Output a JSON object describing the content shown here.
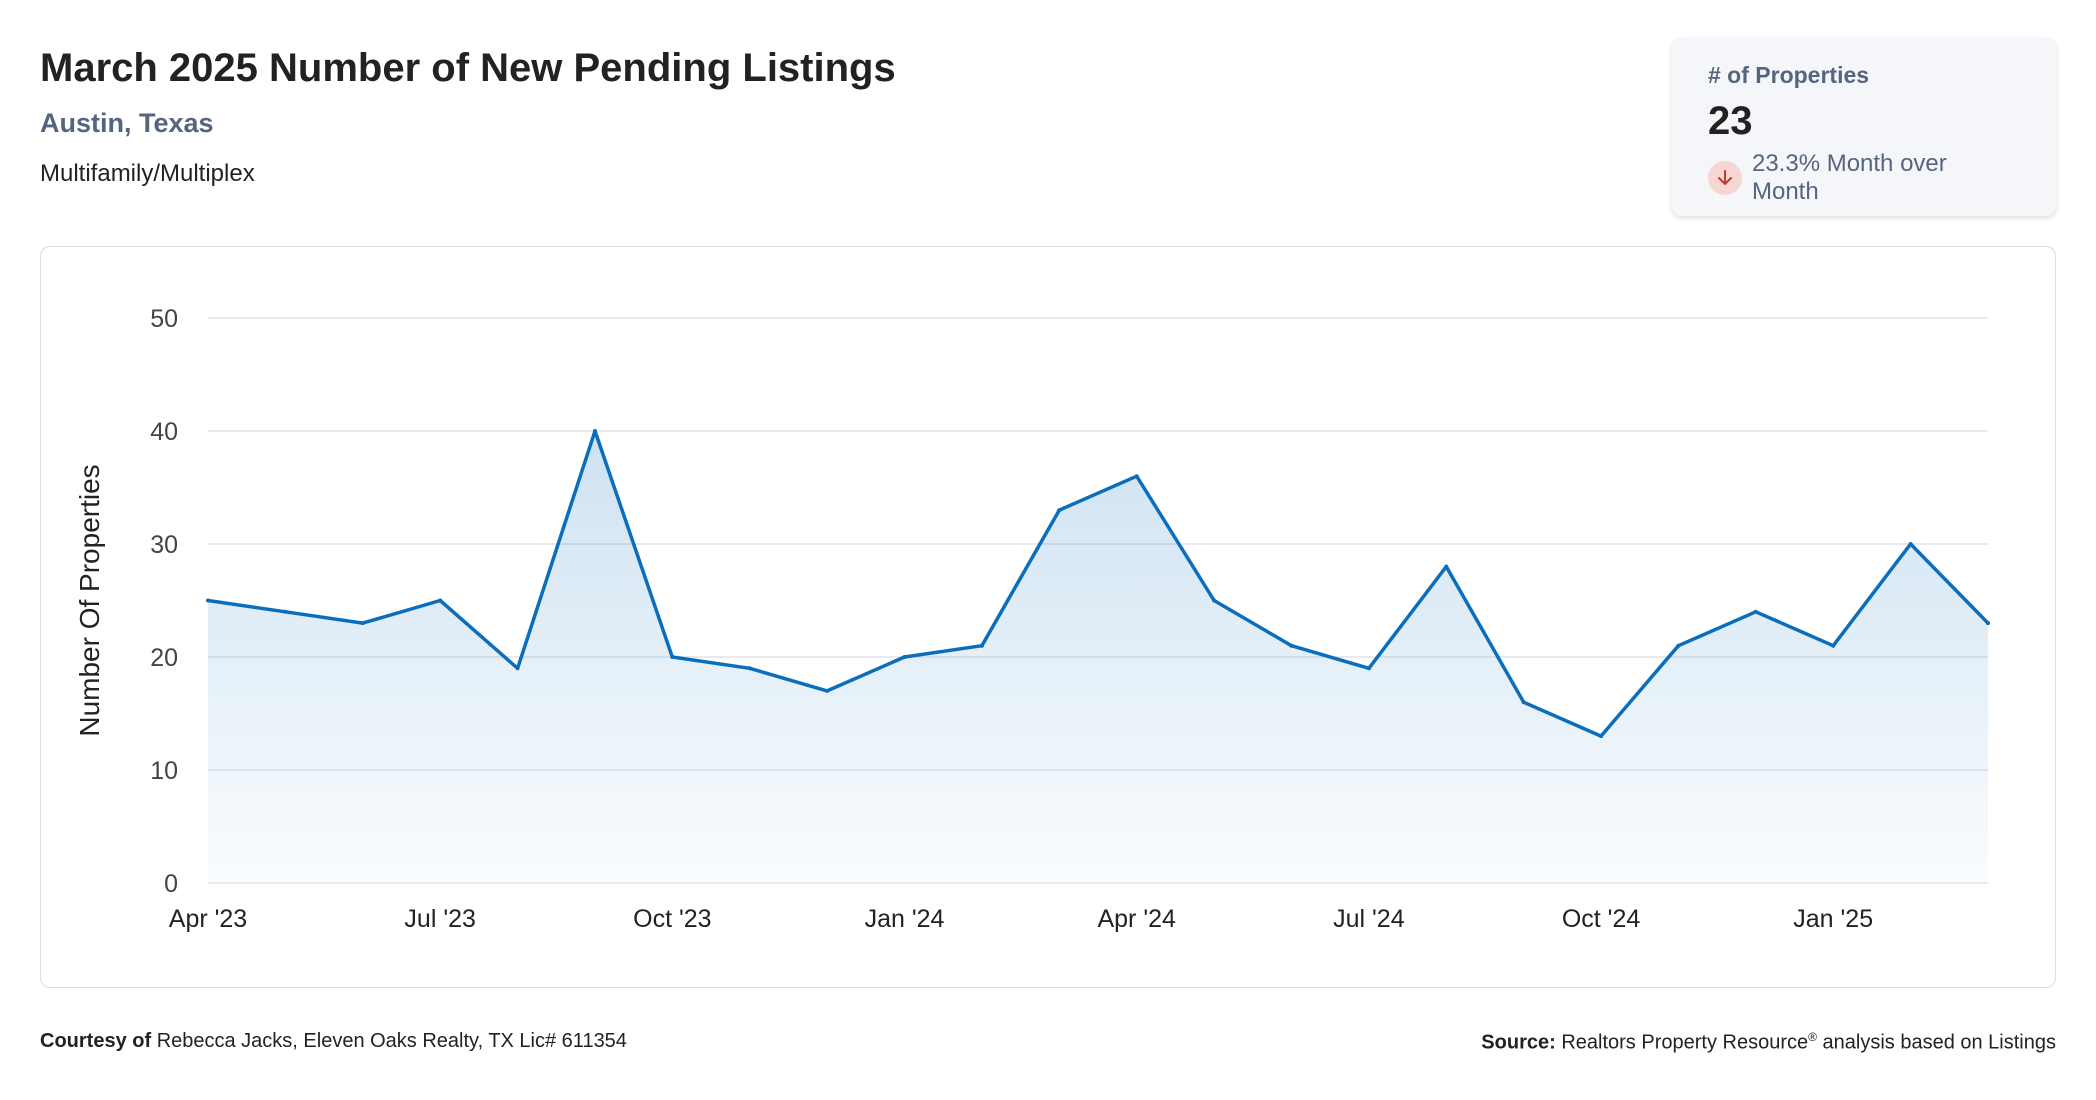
{
  "header": {
    "title": "March 2025 Number of New Pending Listings",
    "location": "Austin, Texas",
    "property_type": "Multifamily/Multiplex"
  },
  "kpi": {
    "label": "# of Properties",
    "value": "23",
    "change_text": "23.3% Month over Month",
    "direction_icon": "arrow-down-icon"
  },
  "footer": {
    "courtesy_label": "Courtesy of",
    "courtesy_text": "Rebecca Jacks, Eleven Oaks Realty, TX Lic# 611354",
    "source_label": "Source:",
    "source_name": "Realtors Property Resource",
    "source_mark": "®",
    "source_rest": "analysis based on Listings"
  },
  "colors": {
    "line": "#0a6ebd",
    "subtitle": "#56657f",
    "grid": "#e1e4ea",
    "down_badge": "#f6d6d3",
    "down_arrow": "#c0392b"
  },
  "chart_data": {
    "type": "area",
    "ylabel": "Number Of Properties",
    "xlabel": "",
    "ylim": [
      0,
      50
    ],
    "yticks": [
      0,
      10,
      20,
      30,
      40,
      50
    ],
    "grid": true,
    "x": [
      "Apr '23",
      "May '23",
      "Jun '23",
      "Jul '23",
      "Aug '23",
      "Sep '23",
      "Oct '23",
      "Nov '23",
      "Dec '23",
      "Jan '24",
      "Feb '24",
      "Mar '24",
      "Apr '24",
      "May '24",
      "Jun '24",
      "Jul '24",
      "Aug '24",
      "Sep '24",
      "Oct '24",
      "Nov '24",
      "Dec '24",
      "Jan '25",
      "Feb '25",
      "Mar '25"
    ],
    "xtick_labels": [
      "Apr '23",
      "Jul '23",
      "Oct '23",
      "Jan '24",
      "Apr '24",
      "Jul '24",
      "Oct '24",
      "Jan '25"
    ],
    "series": [
      {
        "values": [
          25,
          24,
          23,
          25,
          19,
          40,
          20,
          19,
          17,
          20,
          21,
          33,
          36,
          25,
          21,
          19,
          28,
          16,
          13,
          21,
          24,
          21,
          30,
          23
        ]
      }
    ]
  }
}
